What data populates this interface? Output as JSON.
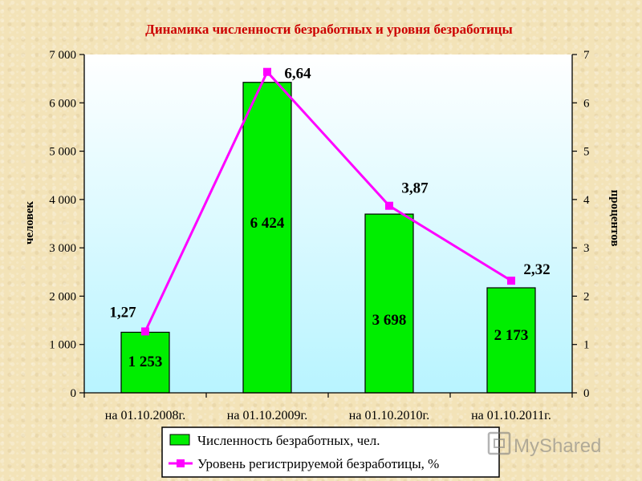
{
  "chart_data": {
    "type": "bar",
    "title": "Динамика численности безработных и уровня безработицы",
    "categories": [
      "на 01.10.2008г.",
      "на 01.10.2009г.",
      "на 01.10.2010г.",
      "на 01.10.2011г."
    ],
    "series": [
      {
        "name": "Численность безработных, чел.",
        "type": "bar",
        "axis": "left",
        "values": [
          1253,
          6424,
          3698,
          2173
        ],
        "labels": [
          "1 253",
          "6 424",
          "3 698",
          "2 173"
        ],
        "color": "#00ee00"
      },
      {
        "name": "Уровень регистрируемой безработицы, %",
        "type": "line",
        "axis": "right",
        "values": [
          1.27,
          6.64,
          3.87,
          2.32
        ],
        "labels": [
          "1,27",
          "6,64",
          "3,87",
          "2,32"
        ],
        "color": "#ff00ff"
      }
    ],
    "ylabel": "человек",
    "y2label": "процентов",
    "ylim": [
      0,
      7000
    ],
    "y2lim": [
      0,
      7
    ],
    "yticks": [
      "0",
      "1 000",
      "2 000",
      "3 000",
      "4 000",
      "5 000",
      "6 000",
      "7 000"
    ],
    "y2ticks": [
      "0",
      "1",
      "2",
      "3",
      "4",
      "5",
      "6",
      "7"
    ],
    "legend_position": "bottom",
    "colors": {
      "title": "#cc0000",
      "plot_bg_top": "#ffffff",
      "plot_bg_bottom": "#b8f4ff",
      "bar": "#00ee00",
      "line": "#ff00ff"
    }
  },
  "watermark": {
    "text": "MyShared"
  }
}
